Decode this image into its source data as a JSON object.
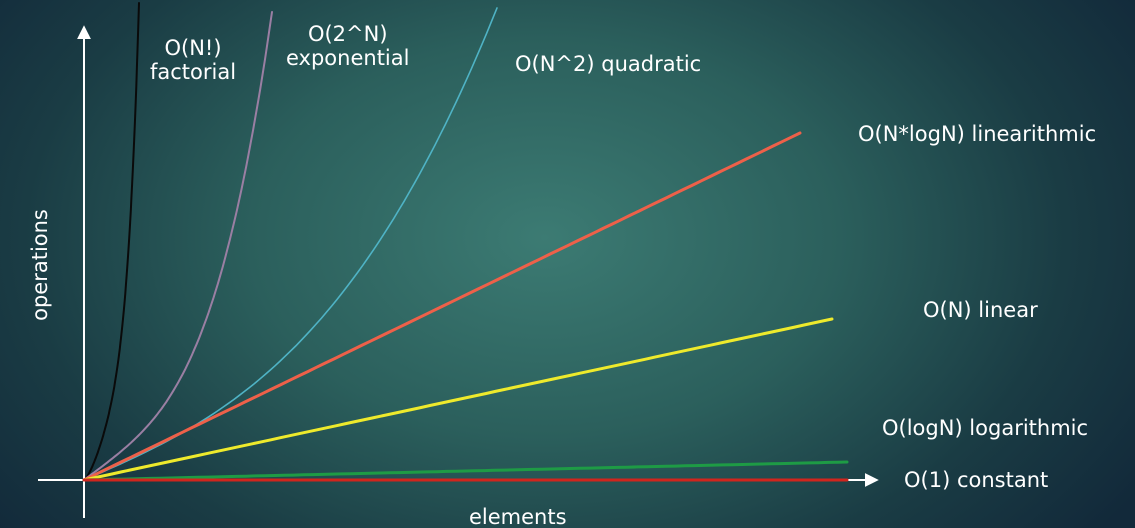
{
  "chart_data": {
    "type": "line",
    "xlabel": "elements",
    "ylabel": "operations",
    "series": [
      {
        "name": "O(N!)",
        "sublabel": "factorial",
        "color": "#0a0a0a",
        "kind": "factorial"
      },
      {
        "name": "O(2^N)",
        "sublabel": "exponential",
        "color": "#9a7fa3",
        "kind": "exponential"
      },
      {
        "name": "O(N^2) quadratic",
        "color": "#4fb3c5",
        "kind": "quadratic"
      },
      {
        "name": "O(N*logN) linearithmic",
        "color": "#ee6049",
        "kind": "nlogn"
      },
      {
        "name": "O(N) linear",
        "color": "#eeea2c",
        "kind": "linear"
      },
      {
        "name": "O(logN) logarithmic",
        "color": "#1e9b45",
        "kind": "log"
      },
      {
        "name": "O(1) constant",
        "color": "#d0251d",
        "kind": "constant"
      }
    ],
    "axis_color": "#ffffff",
    "grid": false,
    "ticks": false
  }
}
